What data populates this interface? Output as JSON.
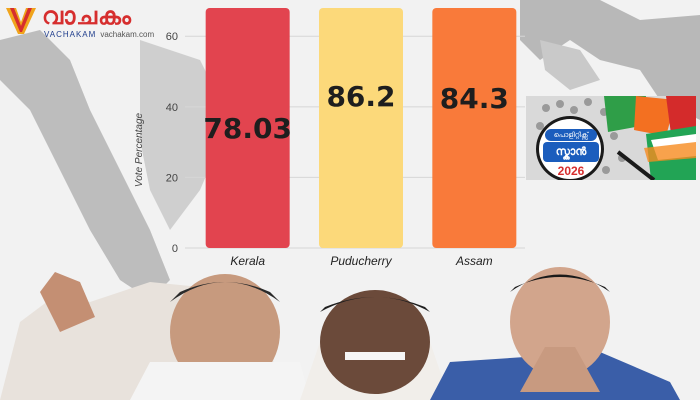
{
  "brand": {
    "name": "വാചകം",
    "sub": "VACHAKAM",
    "url": "vachakam.com"
  },
  "badge": {
    "tag": "പൊളിറ്റിക്സ്",
    "main": "സ്കാൻ",
    "year": "2026"
  },
  "colors": {
    "kerala": "#e2444f",
    "puducherry": "#fcd97a",
    "assam": "#f97a3a",
    "brand_red": "#d62e2e",
    "brand_blue": "#1e3c8c"
  },
  "chart_data": {
    "type": "bar",
    "ylabel": "Vote Percentage",
    "ylim": [
      0,
      68
    ],
    "yticks": [
      0,
      20,
      40,
      60
    ],
    "grid": true,
    "categories": [
      "Kerala",
      "Puducherry",
      "Assam"
    ],
    "values": [
      78.03,
      86.2,
      84.3
    ],
    "value_labels": [
      "78.03",
      "86.2",
      "84.3"
    ],
    "bar_colors": [
      "#e2444f",
      "#fcd97a",
      "#f97a3a"
    ]
  }
}
